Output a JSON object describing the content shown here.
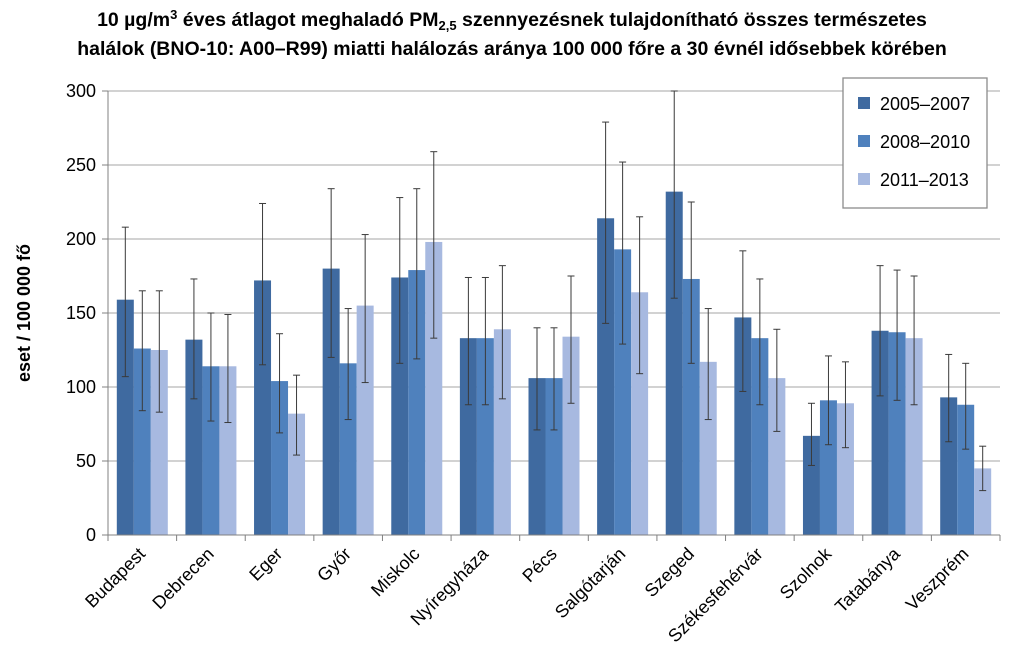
{
  "chart_data": {
    "type": "bar",
    "title": {
      "line1_a": "10 µg/m",
      "line1_sup": "3",
      "line1_b": " éves átlagot meghaladó PM",
      "line1_sub": "2,5",
      "line1_c": " szennyezésnek tulajdonítható összes természetes",
      "line2": "halálok (BNO-10: A00–R99) miatti halálozás aránya 100 000 főre a 30 évnél idősebbek körében"
    },
    "ylabel": "eset / 100 000 fő",
    "xlabel": "",
    "ylim": [
      0,
      300
    ],
    "yticks": [
      0,
      50,
      100,
      150,
      200,
      250,
      300
    ],
    "grid": true,
    "legend_position": "top-right",
    "categories": [
      "Budapest",
      "Debrecen",
      "Eger",
      "Győr",
      "Miskolc",
      "Nyíregyháza",
      "Pécs",
      "Salgótarján",
      "Szeged",
      "Székesfehérvár",
      "Szolnok",
      "Tatabánya",
      "Veszprém"
    ],
    "series": [
      {
        "name": "2005–2007",
        "color": "#3f6aa0",
        "values": [
          159,
          132,
          172,
          180,
          174,
          133,
          106,
          214,
          232,
          147,
          67,
          138,
          93
        ],
        "error_low": [
          107,
          92,
          115,
          120,
          116,
          88,
          71,
          143,
          160,
          97,
          47,
          94,
          63
        ],
        "error_high": [
          208,
          173,
          224,
          234,
          228,
          174,
          140,
          279,
          300,
          192,
          89,
          182,
          122
        ]
      },
      {
        "name": "2008–2010",
        "color": "#4f81bd",
        "values": [
          126,
          114,
          104,
          116,
          179,
          133,
          106,
          193,
          173,
          133,
          91,
          137,
          88
        ],
        "error_low": [
          84,
          77,
          69,
          78,
          119,
          88,
          71,
          129,
          116,
          88,
          61,
          91,
          58
        ],
        "error_high": [
          165,
          150,
          136,
          153,
          234,
          174,
          140,
          252,
          225,
          173,
          121,
          179,
          116
        ]
      },
      {
        "name": "2011–2013",
        "color": "#a7b9e0",
        "values": [
          125,
          114,
          82,
          155,
          198,
          139,
          134,
          164,
          117,
          106,
          89,
          133,
          45
        ],
        "error_low": [
          83,
          76,
          54,
          103,
          133,
          92,
          89,
          109,
          78,
          70,
          59,
          88,
          30
        ],
        "error_high": [
          165,
          149,
          108,
          203,
          259,
          182,
          175,
          215,
          153,
          139,
          117,
          175,
          60
        ]
      }
    ]
  }
}
